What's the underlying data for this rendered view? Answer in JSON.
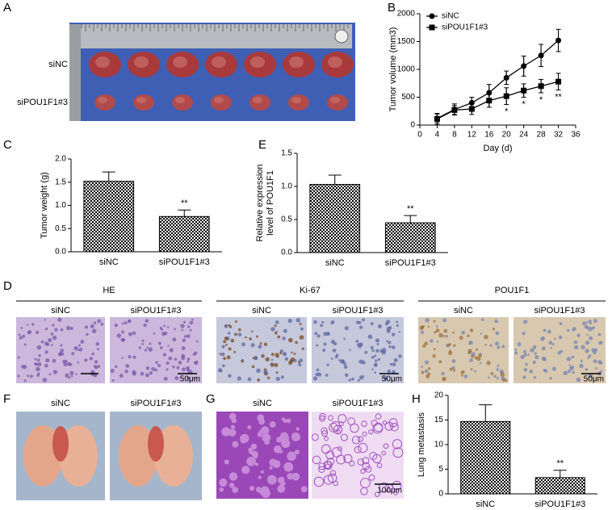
{
  "tumor_photo": {
    "panel_label": "A",
    "rows": [
      "siNC",
      "siPOU1F1#3"
    ]
  },
  "histology": {
    "panel_label": "D",
    "groups": [
      {
        "title": "HE",
        "columns": [
          "siNC",
          "siPOU1F1#3"
        ],
        "scale_bar": "50μm"
      },
      {
        "title": "Ki-67",
        "columns": [
          "siNC",
          "siPOU1F1#3"
        ],
        "scale_bar": "50μm"
      },
      {
        "title": "POU1F1",
        "columns": [
          "siNC",
          "siPOU1F1#3"
        ],
        "scale_bar": "50μm"
      }
    ]
  },
  "lung_photos": {
    "panel_label": "F",
    "columns": [
      "siNC",
      "siPOU1F1#3"
    ]
  },
  "lung_sections": {
    "panel_label": "G",
    "columns": [
      "siNC",
      "siPOU1F1#3"
    ],
    "scale_bar": "100μm"
  },
  "chart_data": [
    {
      "type": "line",
      "panel_label": "B",
      "xlabel": "Day (d)",
      "ylabel": "Tumor volume (mm3)",
      "x": [
        4,
        8,
        12,
        16,
        20,
        24,
        28,
        32
      ],
      "series": [
        {
          "name": "siNC",
          "color": "#000000",
          "marker": "circle",
          "values": [
            120,
            280,
            400,
            580,
            850,
            1060,
            1250,
            1520
          ],
          "errors": [
            80,
            100,
            100,
            150,
            120,
            180,
            200,
            200
          ]
        },
        {
          "name": "siPOU1F1#3",
          "color": "#000000",
          "marker": "square",
          "values": [
            110,
            270,
            290,
            440,
            520,
            620,
            700,
            780
          ],
          "errors": [
            100,
            80,
            100,
            120,
            150,
            120,
            120,
            150
          ]
        }
      ],
      "annotations": [
        {
          "x": 20,
          "text": "*"
        },
        {
          "x": 24,
          "text": "*"
        },
        {
          "x": 28,
          "text": "*"
        },
        {
          "x": 32,
          "text": "**"
        }
      ],
      "xlim": [
        0,
        36
      ],
      "xticks": [
        0,
        4,
        8,
        12,
        16,
        20,
        24,
        28,
        32,
        36
      ],
      "ylim": [
        0,
        2000
      ],
      "yticks": [
        0,
        500,
        1000,
        1500,
        2000
      ],
      "legend": "upper left"
    },
    {
      "type": "bar",
      "panel_label": "C",
      "ylabel": [
        "Tumor weight (g)"
      ],
      "categories": [
        "siNC",
        "siPOU1F1#3"
      ],
      "values": [
        1.52,
        0.76
      ],
      "errors": [
        0.2,
        0.14
      ],
      "annotation": "**",
      "color": "#000000",
      "ylim": [
        0,
        2.0
      ],
      "yticks": [
        {
          "value": 0,
          "label": "0.0"
        },
        0.5,
        {
          "value": 1,
          "label": "1.0"
        },
        1.5,
        {
          "value": 2,
          "label": "2.0"
        }
      ]
    },
    {
      "type": "bar",
      "panel_label": "E",
      "ylabel": [
        "Relative expression",
        "level of POU1F1"
      ],
      "categories": [
        "siNC",
        "siPOU1F1#3"
      ],
      "values": [
        1.03,
        0.45
      ],
      "errors": [
        0.14,
        0.11
      ],
      "annotation": "**",
      "color": "#000000",
      "ylim": [
        0,
        1.5
      ],
      "yticks": [
        {
          "value": 0,
          "label": "0.0"
        },
        0.5,
        {
          "value": 1,
          "label": "1.0"
        },
        1.5
      ]
    },
    {
      "type": "bar",
      "panel_label": "H",
      "ylabel": [
        "Lung metastasis"
      ],
      "categories": [
        "siNC",
        "siPOU1F1#3"
      ],
      "values": [
        14.7,
        3.3
      ],
      "errors": [
        3.4,
        1.5
      ],
      "annotation": "**",
      "color": "#000000",
      "ylim": [
        0,
        20
      ],
      "yticks": [
        0,
        5,
        10,
        15,
        20
      ]
    }
  ]
}
